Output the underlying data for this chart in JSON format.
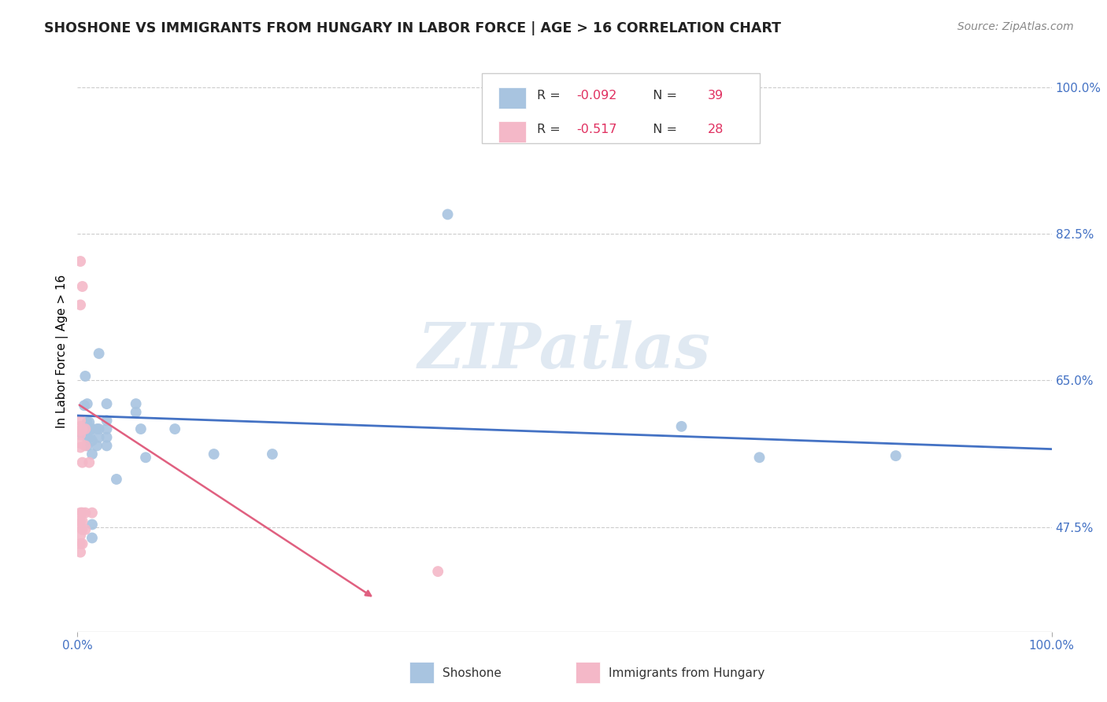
{
  "title": "SHOSHONE VS IMMIGRANTS FROM HUNGARY IN LABOR FORCE | AGE > 16 CORRELATION CHART",
  "source": "Source: ZipAtlas.com",
  "ylabel": "In Labor Force | Age > 16",
  "background_color": "#ffffff",
  "grid_color": "#cccccc",
  "watermark_text": "ZIPatlas",
  "shoshone_color": "#a8c4e0",
  "shoshone_line_color": "#4472c4",
  "hungary_color": "#f4b8c8",
  "hungary_line_color": "#e06080",
  "legend_shoshone_R": "-0.092",
  "legend_shoshone_N": "39",
  "legend_hungary_R": "-0.517",
  "legend_hungary_N": "28",
  "xlim": [
    0.0,
    1.0
  ],
  "ylim": [
    0.35,
    1.02
  ],
  "yticks": [
    0.475,
    0.65,
    0.825,
    1.0
  ],
  "ytick_labels": [
    "47.5%",
    "65.0%",
    "82.5%",
    "100.0%"
  ],
  "xtick_labels": [
    "0.0%",
    "100.0%"
  ],
  "xtick_positions": [
    0.0,
    1.0
  ],
  "shoshone_points": [
    [
      0.005,
      0.585
    ],
    [
      0.007,
      0.62
    ],
    [
      0.008,
      0.655
    ],
    [
      0.01,
      0.622
    ],
    [
      0.01,
      0.6
    ],
    [
      0.01,
      0.592
    ],
    [
      0.01,
      0.582
    ],
    [
      0.01,
      0.572
    ],
    [
      0.012,
      0.6
    ],
    [
      0.012,
      0.59
    ],
    [
      0.013,
      0.592
    ],
    [
      0.013,
      0.582
    ],
    [
      0.015,
      0.592
    ],
    [
      0.015,
      0.578
    ],
    [
      0.015,
      0.562
    ],
    [
      0.015,
      0.478
    ],
    [
      0.015,
      0.462
    ],
    [
      0.02,
      0.592
    ],
    [
      0.02,
      0.572
    ],
    [
      0.022,
      0.682
    ],
    [
      0.022,
      0.592
    ],
    [
      0.022,
      0.582
    ],
    [
      0.03,
      0.622
    ],
    [
      0.03,
      0.602
    ],
    [
      0.03,
      0.592
    ],
    [
      0.03,
      0.582
    ],
    [
      0.03,
      0.572
    ],
    [
      0.04,
      0.532
    ],
    [
      0.06,
      0.622
    ],
    [
      0.06,
      0.612
    ],
    [
      0.065,
      0.592
    ],
    [
      0.07,
      0.558
    ],
    [
      0.1,
      0.592
    ],
    [
      0.14,
      0.562
    ],
    [
      0.2,
      0.562
    ],
    [
      0.38,
      0.848
    ],
    [
      0.62,
      0.595
    ],
    [
      0.7,
      0.558
    ],
    [
      0.84,
      0.56
    ]
  ],
  "hungary_points": [
    [
      0.003,
      0.792
    ],
    [
      0.003,
      0.74
    ],
    [
      0.003,
      0.602
    ],
    [
      0.003,
      0.595
    ],
    [
      0.003,
      0.59
    ],
    [
      0.003,
      0.585
    ],
    [
      0.003,
      0.575
    ],
    [
      0.003,
      0.57
    ],
    [
      0.003,
      0.492
    ],
    [
      0.003,
      0.482
    ],
    [
      0.003,
      0.475
    ],
    [
      0.003,
      0.465
    ],
    [
      0.003,
      0.455
    ],
    [
      0.003,
      0.445
    ],
    [
      0.005,
      0.762
    ],
    [
      0.005,
      0.592
    ],
    [
      0.005,
      0.552
    ],
    [
      0.005,
      0.492
    ],
    [
      0.005,
      0.482
    ],
    [
      0.005,
      0.472
    ],
    [
      0.005,
      0.455
    ],
    [
      0.008,
      0.592
    ],
    [
      0.008,
      0.572
    ],
    [
      0.008,
      0.492
    ],
    [
      0.008,
      0.472
    ],
    [
      0.012,
      0.552
    ],
    [
      0.015,
      0.492
    ],
    [
      0.37,
      0.422
    ]
  ],
  "shoshone_trend_x": [
    0.0,
    1.0
  ],
  "shoshone_trend_y": [
    0.608,
    0.568
  ],
  "hungary_trend_x": [
    0.0,
    0.305
  ],
  "hungary_trend_y": [
    0.622,
    0.39
  ]
}
